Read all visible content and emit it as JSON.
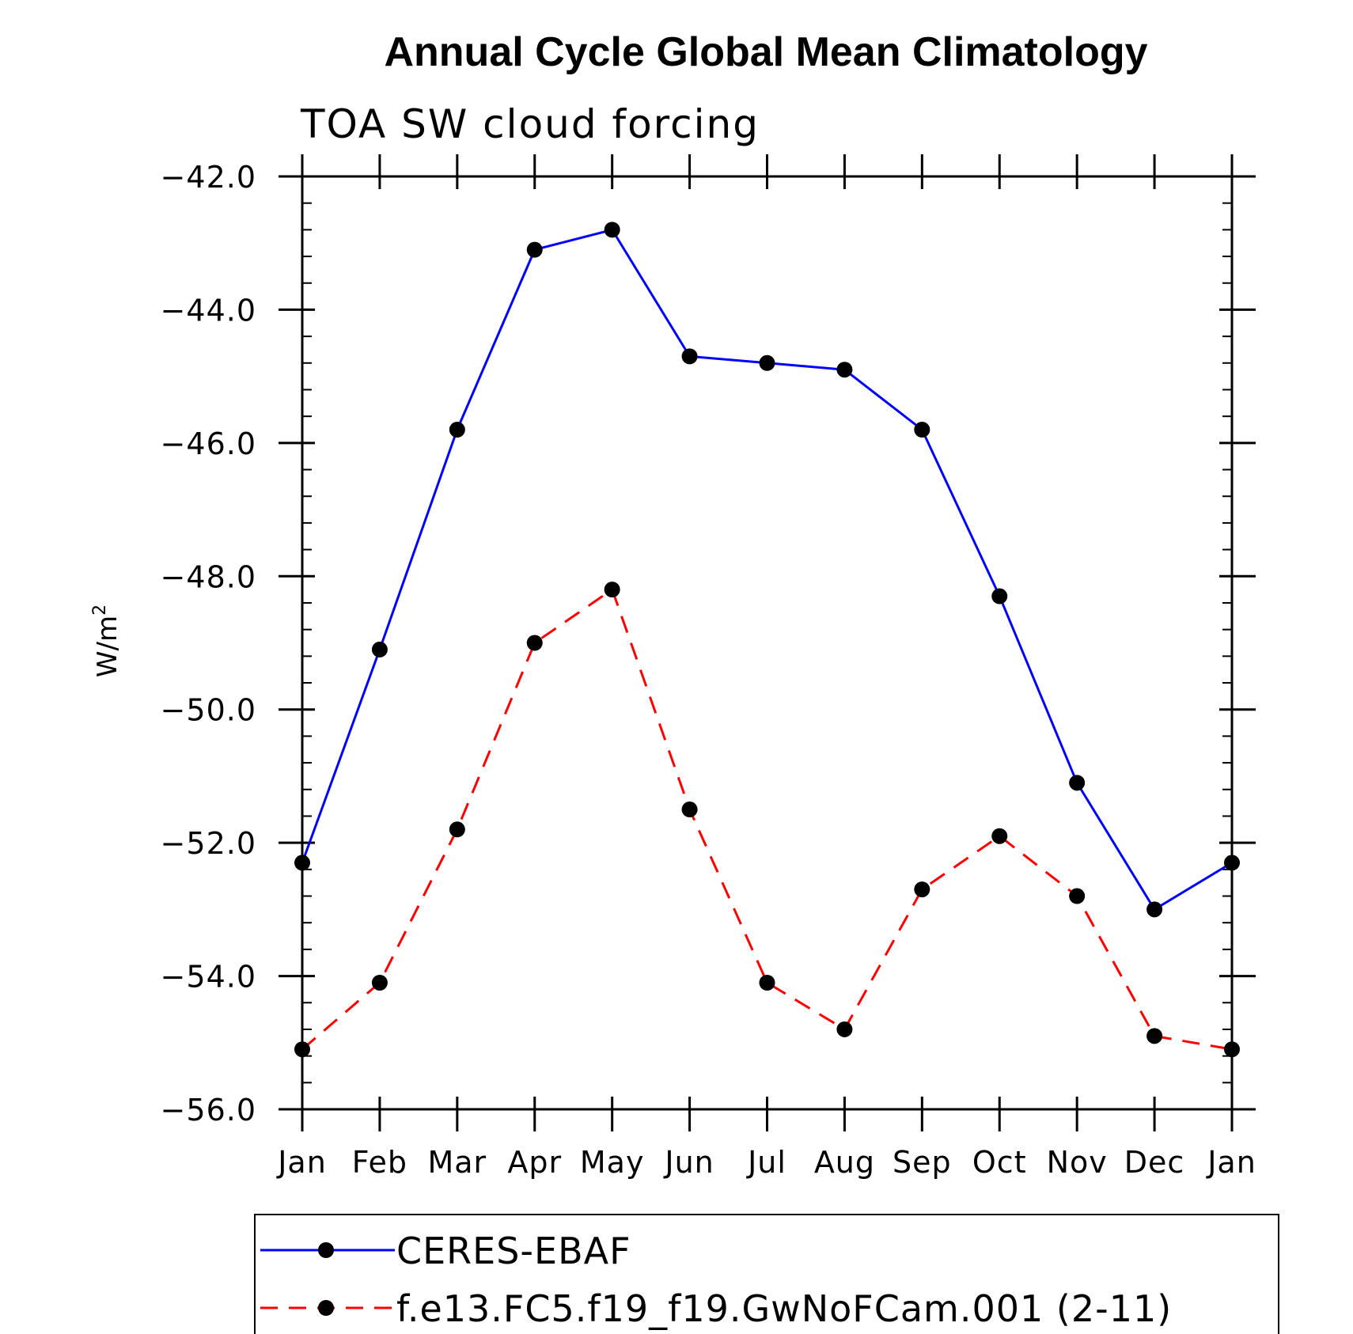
{
  "chart_data": {
    "type": "line",
    "title": "Annual Cycle Global Mean Climatology",
    "subtitle": "TOA SW cloud forcing",
    "xlabel": "",
    "ylabel": "W/m",
    "ylabel_superscript": "2",
    "categories": [
      "Jan",
      "Feb",
      "Mar",
      "Apr",
      "May",
      "Jun",
      "Jul",
      "Aug",
      "Sep",
      "Oct",
      "Nov",
      "Dec",
      "Jan"
    ],
    "ylim": [
      -56.0,
      -42.0
    ],
    "yticks": [
      "-42.0",
      "-44.0",
      "-46.0",
      "-48.0",
      "-50.0",
      "-52.0",
      "-54.0",
      "-56.0"
    ],
    "series": [
      {
        "name": "CERES-EBAF",
        "color": "#0000ff",
        "line_style": "solid",
        "marker": "filled-circle",
        "values": [
          -52.3,
          -49.1,
          -45.8,
          -43.1,
          -42.8,
          -44.7,
          -44.8,
          -44.9,
          -45.8,
          -48.3,
          -51.1,
          -53.0,
          -52.3
        ]
      },
      {
        "name": "f.e13.FC5.f19_f19.GwNoFCam.001 (2-11)",
        "color": "#ff0000",
        "line_style": "dashed",
        "marker": "filled-circle",
        "values": [
          -55.1,
          -54.1,
          -51.8,
          -49.0,
          -48.2,
          -51.5,
          -54.1,
          -54.8,
          -52.7,
          -51.9,
          -52.8,
          -54.9,
          -55.1
        ]
      }
    ],
    "grid": false,
    "legend_position": "bottom"
  }
}
